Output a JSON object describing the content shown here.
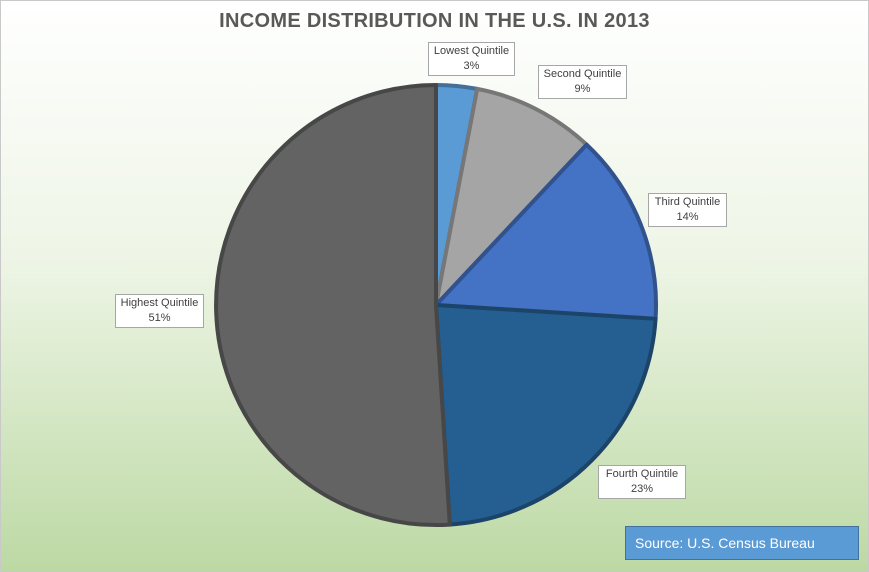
{
  "chart_data": {
    "type": "pie",
    "title": "INCOME DISTRIBUTION IN THE U.S. IN 2013",
    "slices": [
      {
        "label": "Lowest Quintile",
        "value": 3,
        "value_label": "3%",
        "color": "#5b9bd5"
      },
      {
        "label": "Second Quintile",
        "value": 9,
        "value_label": "9%",
        "color": "#a5a5a5"
      },
      {
        "label": "Third Quintile",
        "value": 14,
        "value_label": "14%",
        "color": "#4472c4"
      },
      {
        "label": "Fourth Quintile",
        "value": 23,
        "value_label": "23%",
        "color": "#255e91"
      },
      {
        "label": "Highest Quintile",
        "value": 51,
        "value_label": "51%",
        "color": "#636363"
      }
    ],
    "start_angle_deg": 0,
    "direction": "clockwise",
    "legend": "none",
    "data_labels": "callouts"
  },
  "source": "Source: U.S. Census Bureau"
}
